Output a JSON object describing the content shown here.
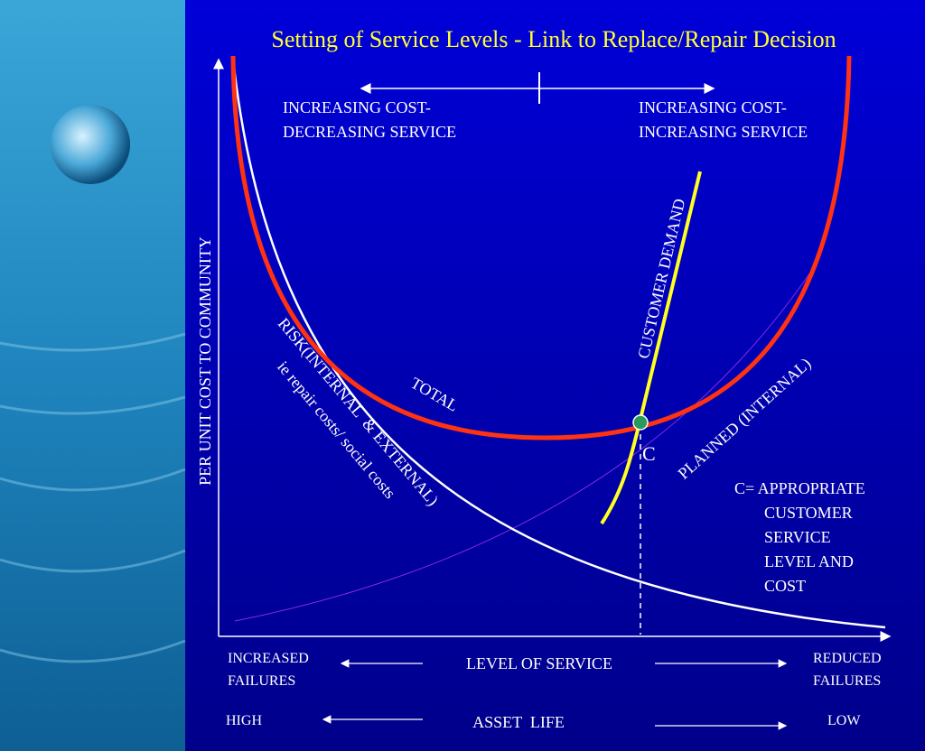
{
  "title": "Setting of Service Levels - Link to Replace/Repair Decision",
  "top_labels": {
    "left": [
      "INCREASING COST-",
      "DECREASING SERVICE"
    ],
    "right": [
      "INCREASING COST-",
      "INCREASING SERVICE"
    ]
  },
  "y_axis_label": "PER UNIT COST TO COMMUNITY",
  "curves": {
    "total": "TOTAL",
    "customer_demand": "CUSTOMER DEMAND",
    "planned": "PLANNED (INTERNAL)",
    "risk": [
      "RISK(INTERNAL  & EXTERNAL)",
      "ie repair costs/ social costs"
    ]
  },
  "point_label": "C",
  "note": [
    "C= APPROPRIATE",
    "CUSTOMER",
    "SERVICE",
    "LEVEL AND",
    "COST"
  ],
  "x_axis": {
    "service": {
      "left": [
        "INCREASED",
        "FAILURES"
      ],
      "center": "LEVEL OF SERVICE",
      "right": [
        "REDUCED",
        "FAILURES"
      ]
    },
    "life": {
      "left": "HIGH",
      "center": "ASSET  LIFE",
      "right": "LOW"
    }
  }
}
